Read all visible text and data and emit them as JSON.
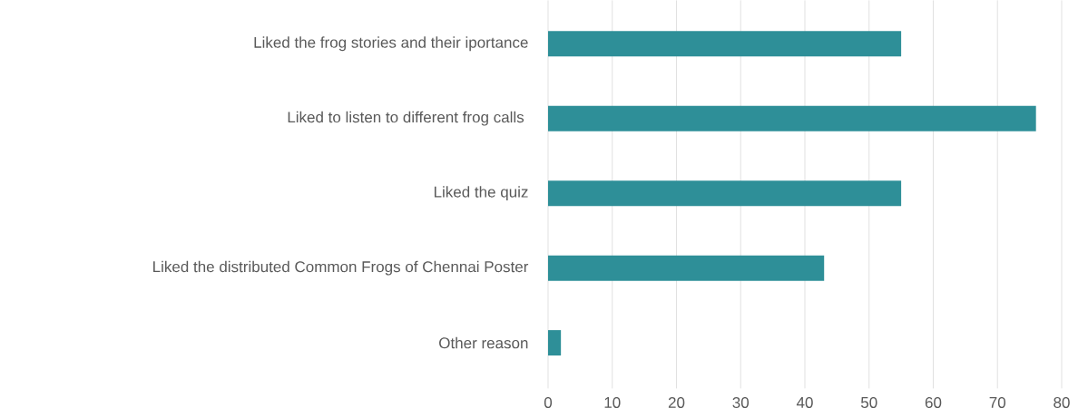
{
  "chart_data": {
    "type": "bar",
    "orientation": "horizontal",
    "categories": [
      "Liked the frog stories and their iportance",
      "Liked to listen to different frog calls ",
      "Liked the quiz",
      "Liked the distributed Common Frogs of Chennai Poster",
      "Other reason"
    ],
    "values": [
      55,
      76,
      55,
      43,
      2
    ],
    "color": "#2e8f98",
    "xlim": [
      0,
      80
    ],
    "xticks": [
      0,
      10,
      20,
      30,
      40,
      50,
      60,
      70,
      80
    ],
    "grid": "x"
  }
}
